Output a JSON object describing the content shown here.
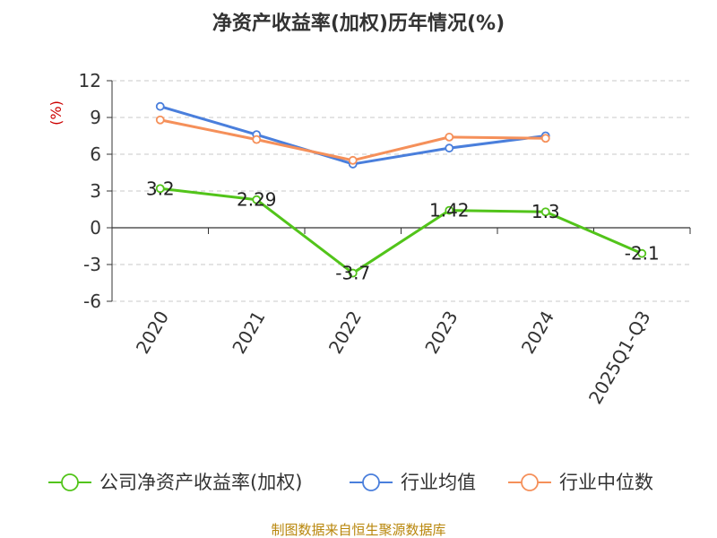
{
  "title": "净资产收益率(加权)历年情况(%)",
  "source": "制图数据来自恒生聚源数据库",
  "chart_data": {
    "type": "line",
    "title": "净资产收益率(加权)历年情况(%)",
    "xlabel": "",
    "ylabel": "(%)",
    "categories": [
      "2020",
      "2021",
      "2022",
      "2023",
      "2024",
      "2025Q1-Q3"
    ],
    "ylim": [
      -6,
      12
    ],
    "yticks": [
      "12",
      "9",
      "6",
      "3",
      "0",
      "-3",
      "-6"
    ],
    "grid": true,
    "legend_position": "bottom",
    "series": [
      {
        "name": "公司净资产收益率(加权)",
        "color": "#52c41a",
        "values": [
          3.2,
          2.29,
          -3.7,
          1.42,
          1.3,
          -2.1
        ],
        "labels": [
          "3.2",
          "2.29",
          "-3.7",
          "1.42",
          "1.3",
          "-2.1"
        ]
      },
      {
        "name": "行业均值",
        "color": "#4a7fdc",
        "values": [
          9.9,
          7.6,
          5.2,
          6.5,
          7.5,
          null
        ]
      },
      {
        "name": "行业中位数",
        "color": "#f5905a",
        "values": [
          8.8,
          7.2,
          5.5,
          7.4,
          7.3,
          null
        ]
      }
    ]
  }
}
